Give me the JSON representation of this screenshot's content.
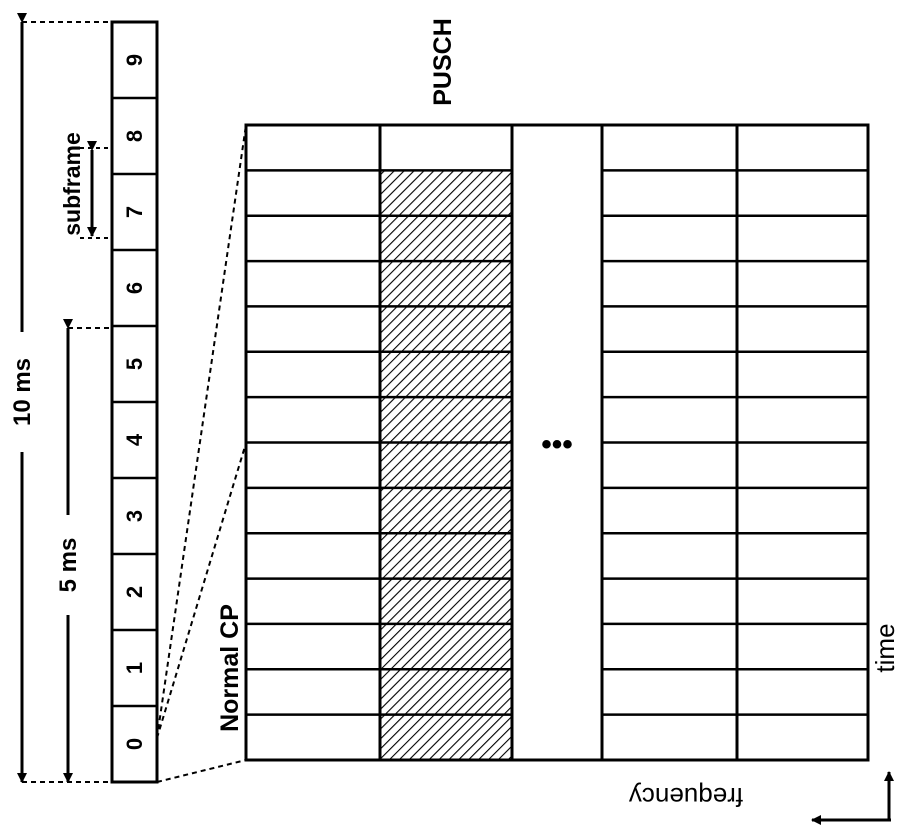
{
  "labels": {
    "ten_ms": "10 ms",
    "five_ms": "5 ms",
    "subframe": "subframe",
    "pusch": "PUSCH",
    "normal_cp": "Normal CP",
    "ellipsis": "•••",
    "time": "time",
    "frequency": "frequency"
  },
  "subframes": [
    "0",
    "1",
    "2",
    "3",
    "4",
    "5",
    "6",
    "7",
    "8",
    "9"
  ],
  "grid": {
    "rows": 14,
    "columns": 5,
    "hatched_column": 2,
    "ellipsis_column": 3
  },
  "colors": {
    "line": "#000000",
    "background": "#ffffff",
    "hatch": "#000000"
  }
}
